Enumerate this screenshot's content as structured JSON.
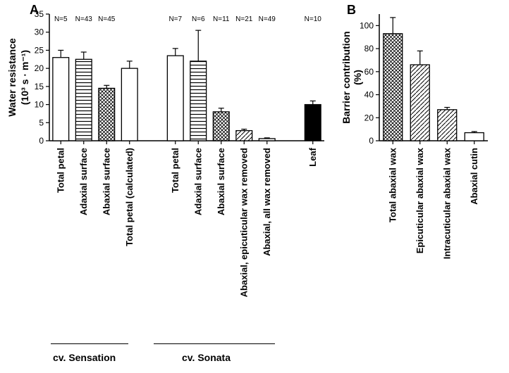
{
  "panelA": {
    "label": "A",
    "type": "bar",
    "ylabel_line1": "Water resistance",
    "ylabel_line2": "(10³ s · m⁻¹)",
    "ylim": [
      0,
      35
    ],
    "ytick_step": 5,
    "bar_stroke": "#000000",
    "bg": "#ffffff",
    "bars": [
      {
        "cat": "Total petal",
        "val": 23.0,
        "err": 2.0,
        "pattern": "none",
        "n": "N=5"
      },
      {
        "cat": "Adaxial surface",
        "val": 22.5,
        "err": 2.0,
        "pattern": "hstripe",
        "n": "N=43"
      },
      {
        "cat": "Abaxial surface",
        "val": 14.5,
        "err": 0.8,
        "pattern": "crosshatch",
        "n": "N=45"
      },
      {
        "cat": "Total petal (calculated)",
        "val": 20.0,
        "err": 2.0,
        "pattern": "none",
        "n": ""
      },
      {
        "cat": "",
        "val": 0,
        "err": 0,
        "pattern": "gap",
        "n": ""
      },
      {
        "cat": "Total petal",
        "val": 23.5,
        "err": 2.0,
        "pattern": "none",
        "n": "N=7"
      },
      {
        "cat": "Adaxial surface",
        "val": 22.0,
        "err": 8.5,
        "pattern": "hstripe",
        "n": "N=6"
      },
      {
        "cat": "Abaxial surface",
        "val": 8.0,
        "err": 1.0,
        "pattern": "crosshatch",
        "n": "N=11"
      },
      {
        "cat": "Abaxial, epicuticular wax removed",
        "val": 2.8,
        "err": 0.4,
        "pattern": "diag",
        "n": "N=21"
      },
      {
        "cat": "Abaxial, all wax removed",
        "val": 0.6,
        "err": 0.2,
        "pattern": "none",
        "n": "N=49"
      },
      {
        "cat": "",
        "val": 0,
        "err": 0,
        "pattern": "gap",
        "n": ""
      },
      {
        "cat": "Leaf",
        "val": 10.0,
        "err": 1.0,
        "pattern": "solid",
        "n": "N=10"
      }
    ],
    "cv1": "cv. Sensation",
    "cv2": "cv.  Sonata"
  },
  "panelB": {
    "label": "B",
    "type": "bar",
    "ylabel_line1": "Barrier contribution",
    "ylabel_line2": "(%)",
    "ylim": [
      0,
      110
    ],
    "ytick_step": 20,
    "ymax_tick": 100,
    "bars": [
      {
        "cat": "Total abaxial wax",
        "val": 93,
        "err": 14,
        "pattern": "crosshatch"
      },
      {
        "cat": "Epicuticular abaxial wax",
        "val": 66,
        "err": 12,
        "pattern": "diag"
      },
      {
        "cat": "Intracuticular abaxial wax",
        "val": 27,
        "err": 2,
        "pattern": "diag"
      },
      {
        "cat": "Abaxial cutin",
        "val": 7,
        "err": 1,
        "pattern": "none"
      }
    ]
  }
}
